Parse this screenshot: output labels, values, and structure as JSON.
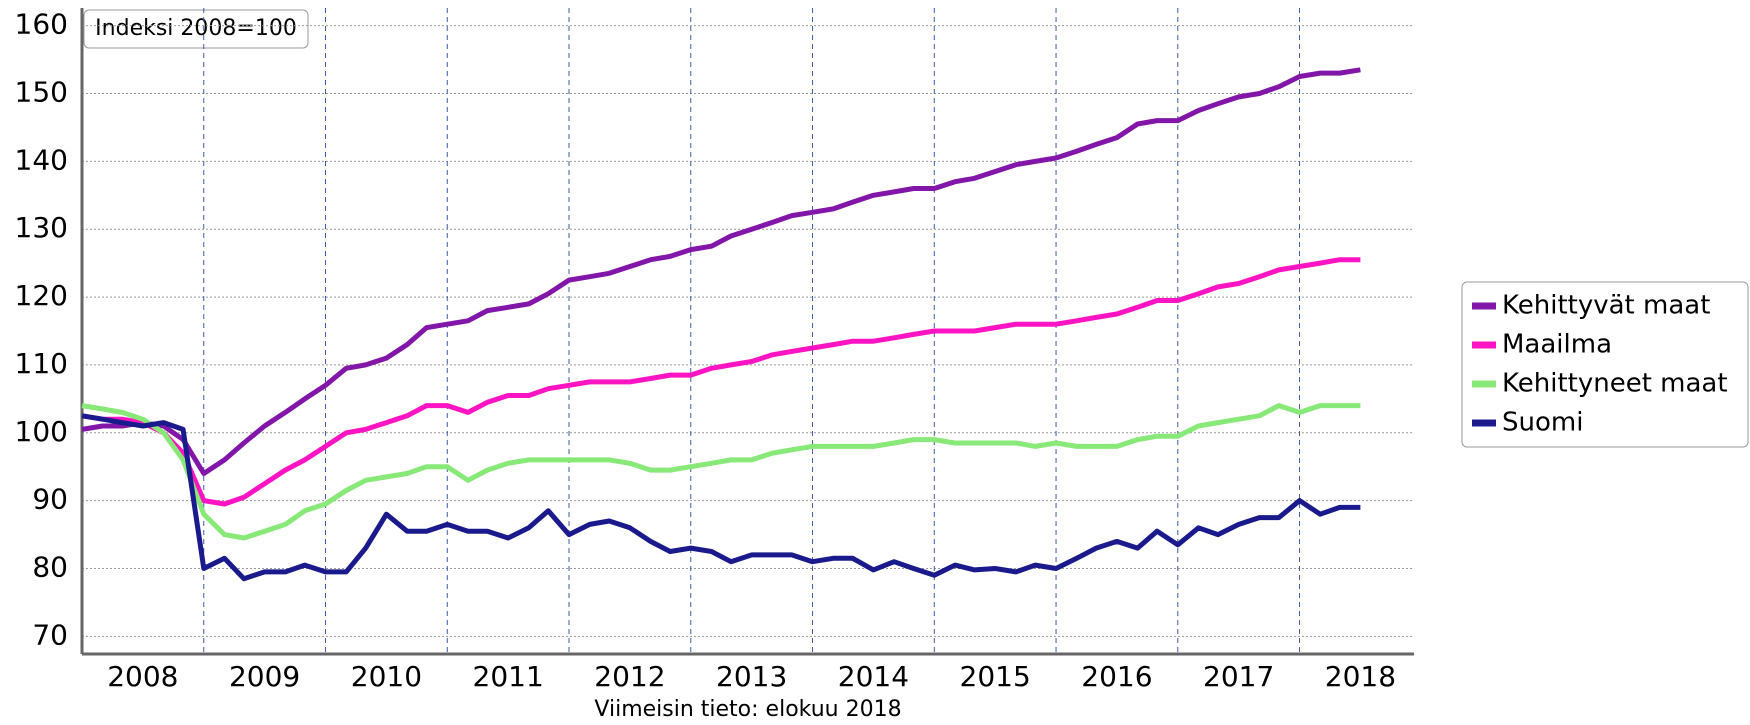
{
  "chart_data": {
    "type": "line",
    "annotation": "Indeksi 2008=100",
    "footnote": "Viimeisin tieto: elokuu 2018",
    "x": [
      2008,
      2008.17,
      2008.33,
      2008.5,
      2008.67,
      2008.83,
      2009,
      2009.17,
      2009.33,
      2009.5,
      2009.67,
      2009.83,
      2010,
      2010.17,
      2010.33,
      2010.5,
      2010.67,
      2010.83,
      2011,
      2011.17,
      2011.33,
      2011.5,
      2011.67,
      2011.83,
      2012,
      2012.17,
      2012.33,
      2012.5,
      2012.67,
      2012.83,
      2013,
      2013.17,
      2013.33,
      2013.5,
      2013.67,
      2013.83,
      2014,
      2014.17,
      2014.33,
      2014.5,
      2014.67,
      2014.83,
      2015,
      2015.17,
      2015.33,
      2015.5,
      2015.67,
      2015.83,
      2016,
      2016.17,
      2016.33,
      2016.5,
      2016.67,
      2016.83,
      2017,
      2017.17,
      2017.33,
      2017.5,
      2017.67,
      2017.83,
      2018,
      2018.17,
      2018.33,
      2018.5
    ],
    "series": [
      {
        "name": "Kehittyvät maat",
        "color": "#8216a8",
        "values": [
          100.5,
          101,
          101,
          101.5,
          101,
          99,
          94,
          96,
          98.5,
          101,
          103,
          105,
          107,
          109.5,
          110,
          111,
          113,
          115.5,
          116,
          116.5,
          118,
          118.5,
          119,
          120.5,
          122.5,
          123,
          123.5,
          124.5,
          125.5,
          126,
          127,
          127.5,
          129,
          130,
          131,
          132,
          132.5,
          133,
          134,
          135,
          135.5,
          136,
          136,
          137,
          137.5,
          138.5,
          139.5,
          140,
          140.5,
          141.5,
          142.5,
          143.5,
          145.5,
          146,
          146,
          147.5,
          148.5,
          149.5,
          150,
          151,
          152.5,
          153,
          153,
          153.5
        ]
      },
      {
        "name": "Maailma",
        "color": "#ff14c4",
        "values": [
          102.5,
          102,
          102,
          101.5,
          100,
          97,
          90,
          89.5,
          90.5,
          92.5,
          94.5,
          96,
          98,
          100,
          100.5,
          101.5,
          102.5,
          104,
          104,
          103,
          104.5,
          105.5,
          105.5,
          106.5,
          107,
          107.5,
          107.5,
          107.5,
          108,
          108.5,
          108.5,
          109.5,
          110,
          110.5,
          111.5,
          112,
          112.5,
          113,
          113.5,
          113.5,
          114,
          114.5,
          115,
          115,
          115,
          115.5,
          116,
          116,
          116,
          116.5,
          117,
          117.5,
          118.5,
          119.5,
          119.5,
          120.5,
          121.5,
          122,
          123,
          124,
          124.5,
          125,
          125.5,
          125.5
        ]
      },
      {
        "name": "Kehittyneet maat",
        "color": "#88e878",
        "values": [
          104,
          103.5,
          103,
          102,
          100,
          96,
          88,
          85,
          84.5,
          85.5,
          86.5,
          88.5,
          89.5,
          91.5,
          93,
          93.5,
          94,
          95,
          95,
          93,
          94.5,
          95.5,
          96,
          96,
          96,
          96,
          96,
          95.5,
          94.5,
          94.5,
          95,
          95.5,
          96,
          96,
          97,
          97.5,
          98,
          98,
          98,
          98,
          98.5,
          99,
          99,
          98.5,
          98.5,
          98.5,
          98.5,
          98,
          98.5,
          98,
          98,
          98,
          99,
          99.5,
          99.5,
          101,
          101.5,
          102,
          102.5,
          104,
          103,
          104,
          104,
          104
        ]
      },
      {
        "name": "Suomi",
        "color": "#1a1a8c",
        "values": [
          102.5,
          102,
          101.5,
          101,
          101.5,
          100.5,
          80,
          81.5,
          78.5,
          79.5,
          79.5,
          80.5,
          79.5,
          79.5,
          83,
          88,
          85.5,
          85.5,
          86.5,
          85.5,
          85.5,
          84.5,
          86,
          88.5,
          85,
          86.5,
          87,
          86,
          84,
          82.5,
          83,
          82.5,
          81,
          82,
          82,
          82,
          81,
          81.5,
          81.5,
          79.8,
          81,
          80,
          79,
          80.5,
          79.8,
          80,
          79.5,
          80.5,
          80,
          81.5,
          83,
          84,
          83,
          85.5,
          83.5,
          86,
          85,
          86.5,
          87.5,
          87.5,
          90,
          88,
          89,
          89
        ]
      }
    ],
    "xlim": [
      2008,
      2018.94
    ],
    "xticks": [
      {
        "value": 2008.5,
        "label": "2008"
      },
      {
        "value": 2009.5,
        "label": "2009"
      },
      {
        "value": 2010.5,
        "label": "2010"
      },
      {
        "value": 2011.5,
        "label": "2011"
      },
      {
        "value": 2012.5,
        "label": "2012"
      },
      {
        "value": 2013.5,
        "label": "2013"
      },
      {
        "value": 2014.5,
        "label": "2014"
      },
      {
        "value": 2015.5,
        "label": "2015"
      },
      {
        "value": 2016.5,
        "label": "2016"
      },
      {
        "value": 2017.5,
        "label": "2017"
      },
      {
        "value": 2018.5,
        "label": "2018"
      }
    ],
    "xgrid": [
      2009,
      2010,
      2011,
      2012,
      2013,
      2014,
      2015,
      2016,
      2017,
      2018
    ],
    "ylim": [
      67.4,
      162.6
    ],
    "yticks": [
      70,
      80,
      90,
      100,
      110,
      120,
      130,
      140,
      150,
      160
    ],
    "grid": true,
    "legend": "right"
  }
}
